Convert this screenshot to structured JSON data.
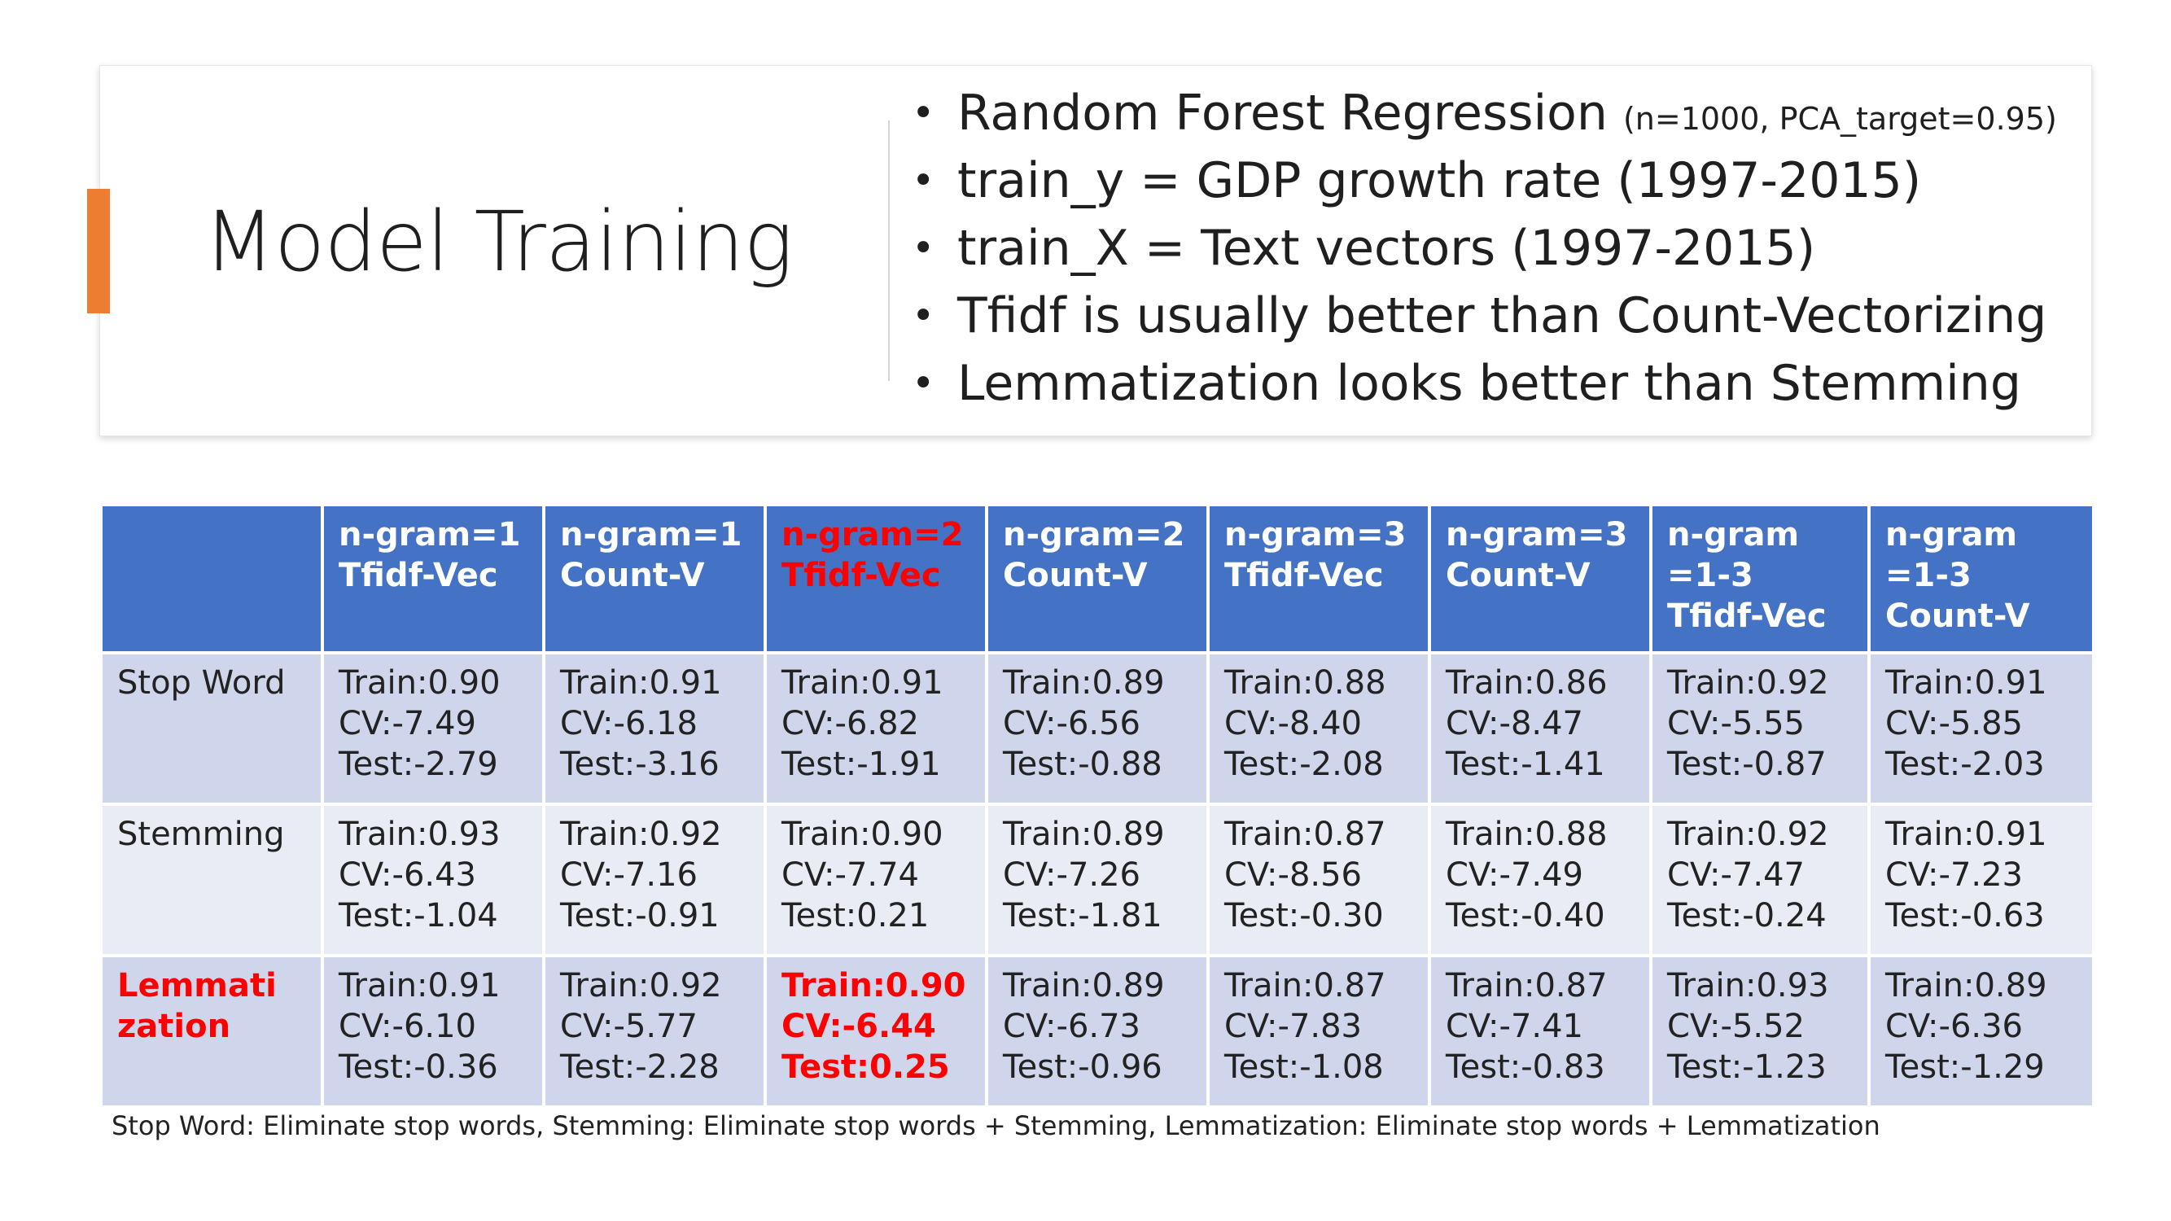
{
  "slide": {
    "title": "Model Training",
    "bullets": [
      {
        "text": "Random Forest Regression",
        "note": "(n=1000, PCA_target=0.95)"
      },
      {
        "text": "train_y = GDP growth rate (1997-2015)",
        "note": ""
      },
      {
        "text": "train_X = Text vectors (1997-2015)",
        "note": ""
      },
      {
        "text": "Tfidf is usually better than Count-Vectorizing",
        "note": ""
      },
      {
        "text": "Lemmatization looks better than Stemming",
        "note": ""
      }
    ],
    "colors": {
      "accent": "#ed7d31",
      "header": "#4472c4",
      "row_dark": "#cfd5ea",
      "row_light": "#e9ebf5",
      "highlight": "#ff0000"
    }
  },
  "table": {
    "headers": [
      [
        "n-gram=1",
        "Tfidf-Vec"
      ],
      [
        "n-gram=1",
        "Count-V"
      ],
      [
        "n-gram=2",
        "Tfidf-Vec"
      ],
      [
        "n-gram=2",
        "Count-V"
      ],
      [
        "n-gram=3",
        "Tfidf-Vec"
      ],
      [
        "n-gram=3",
        "Count-V"
      ],
      [
        "n-gram",
        "=1-3",
        "Tfidf-Vec"
      ],
      [
        "n-gram",
        "=1-3",
        "Count-V"
      ]
    ],
    "rows": [
      {
        "label": [
          "Stop Word"
        ],
        "cells": [
          [
            "Train:0.90",
            "CV:-7.49",
            "Test:-2.79"
          ],
          [
            "Train:0.91",
            "CV:-6.18",
            "Test:-3.16"
          ],
          [
            "Train:0.91",
            "CV:-6.82",
            "Test:-1.91"
          ],
          [
            "Train:0.89",
            "CV:-6.56",
            "Test:-0.88"
          ],
          [
            "Train:0.88",
            "CV:-8.40",
            "Test:-2.08"
          ],
          [
            "Train:0.86",
            "CV:-8.47",
            "Test:-1.41"
          ],
          [
            "Train:0.92",
            "CV:-5.55",
            "Test:-0.87"
          ],
          [
            "Train:0.91",
            "CV:-5.85",
            "Test:-2.03"
          ]
        ]
      },
      {
        "label": [
          "Stemming"
        ],
        "cells": [
          [
            "Train:0.93",
            "CV:-6.43",
            "Test:-1.04"
          ],
          [
            "Train:0.92",
            "CV:-7.16",
            "Test:-0.91"
          ],
          [
            "Train:0.90",
            "CV:-7.74",
            "Test:0.21"
          ],
          [
            "Train:0.89",
            "CV:-7.26",
            "Test:-1.81"
          ],
          [
            "Train:0.87",
            "CV:-8.56",
            "Test:-0.30"
          ],
          [
            "Train:0.88",
            "CV:-7.49",
            "Test:-0.40"
          ],
          [
            "Train:0.92",
            "CV:-7.47",
            "Test:-0.24"
          ],
          [
            "Train:0.91",
            "CV:-7.23",
            "Test:-0.63"
          ]
        ]
      },
      {
        "label": [
          "Lemmati",
          "zation"
        ],
        "cells": [
          [
            "Train:0.91",
            "CV:-6.10",
            "Test:-0.36"
          ],
          [
            "Train:0.92",
            "CV:-5.77",
            "Test:-2.28"
          ],
          [
            "Train:0.90",
            "CV:-6.44",
            "Test:0.25"
          ],
          [
            "Train:0.89",
            "CV:-6.73",
            "Test:-0.96"
          ],
          [
            "Train:0.87",
            "CV:-7.83",
            "Test:-1.08"
          ],
          [
            "Train:0.87",
            "CV:-7.41",
            "Test:-0.83"
          ],
          [
            "Train:0.93",
            "CV:-5.52",
            "Test:-1.23"
          ],
          [
            "Train:0.89",
            "CV:-6.36",
            "Test:-1.29"
          ]
        ]
      }
    ],
    "highlight": {
      "column": 2,
      "row_label": 2,
      "cell_row": 2
    }
  },
  "footnote": "Stop Word: Eliminate stop words,   Stemming: Eliminate stop words + Stemming,   Lemmatization: Eliminate stop words + Lemmatization"
}
